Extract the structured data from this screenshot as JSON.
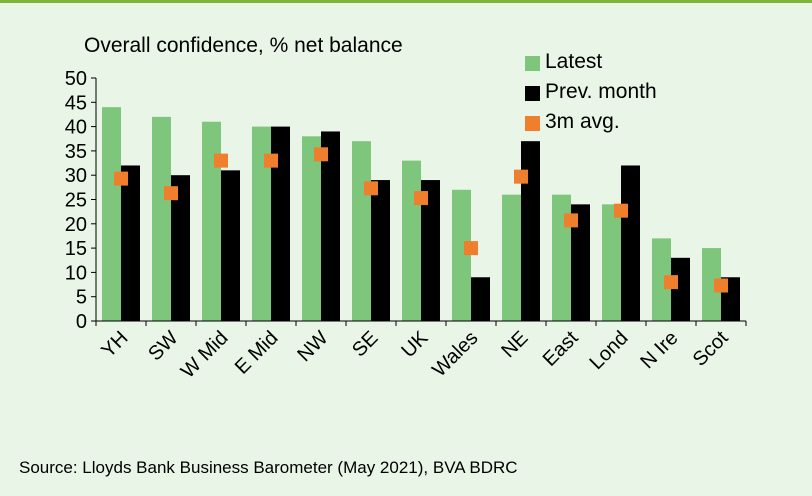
{
  "chart_data": {
    "type": "bar",
    "title": "Overall confidence, % net balance",
    "source": "Source: Lloyds Bank Business Barometer (May 2021), BVA BDRC",
    "categories": [
      "YH",
      "SW",
      "W Mid",
      "E Mid",
      "NW",
      "SE",
      "UK",
      "Wales",
      "NE",
      "East",
      "Lond",
      "N Ire",
      "Scot"
    ],
    "series": [
      {
        "name": "Latest",
        "type": "bar",
        "color": "#7dc67b",
        "values": [
          44,
          42,
          41,
          40,
          38,
          37,
          33,
          27,
          26,
          26,
          24,
          17,
          15
        ]
      },
      {
        "name": "Prev. month",
        "type": "bar",
        "color": "#000000",
        "values": [
          32,
          30,
          31,
          40,
          39,
          29,
          29,
          9,
          37,
          24,
          32,
          13,
          9
        ]
      },
      {
        "name": "3m avg.",
        "type": "marker",
        "color": "#f07f2d",
        "values": [
          29.3,
          26.3,
          33,
          33,
          34.3,
          27.3,
          25.3,
          15,
          29.7,
          20.7,
          22.7,
          8,
          7.3
        ]
      }
    ],
    "ylim": [
      0,
      50
    ],
    "yticks": [
      0,
      5,
      10,
      15,
      20,
      25,
      30,
      35,
      40,
      45,
      50
    ],
    "grid": false,
    "legend_position": "top-right"
  }
}
